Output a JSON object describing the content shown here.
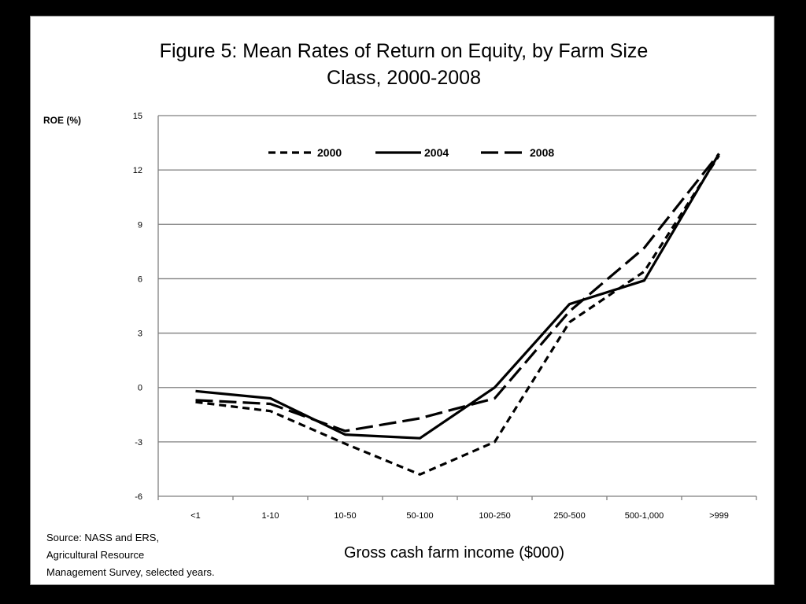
{
  "chart_data": {
    "type": "line",
    "title": [
      "Figure 5: Mean Rates of Return on Equity, by Farm Size",
      "Class, 2000-2008"
    ],
    "ylabel": "ROE (%)",
    "xlabel": "Gross cash farm income ($000)",
    "ylim": [
      -6,
      15
    ],
    "yticks": [
      15,
      12,
      9,
      6,
      3,
      0,
      -3,
      -6
    ],
    "grid": true,
    "legend_position": "top",
    "categories": [
      "<1",
      "1-10",
      "10-50",
      "50-100",
      "100-250",
      "250-500",
      "500-1,000",
      ">999"
    ],
    "series": [
      {
        "name": "2000",
        "style": "short-dash",
        "color": "#000000",
        "values": [
          -0.8,
          -1.3,
          -3.1,
          -4.8,
          -3.0,
          3.6,
          6.4,
          12.8
        ]
      },
      {
        "name": "2004",
        "style": "solid",
        "color": "#000000",
        "values": [
          -0.2,
          -0.6,
          -2.6,
          -2.8,
          0.0,
          4.6,
          5.9,
          12.9
        ]
      },
      {
        "name": "2008",
        "style": "long-dash",
        "color": "#000000",
        "values": [
          -0.7,
          -0.9,
          -2.4,
          -1.7,
          -0.6,
          4.2,
          7.7,
          12.9
        ]
      }
    ],
    "source": [
      "Source:  NASS and ERS,",
      "Agricultural Resource",
      "Management  Survey, selected years."
    ]
  }
}
